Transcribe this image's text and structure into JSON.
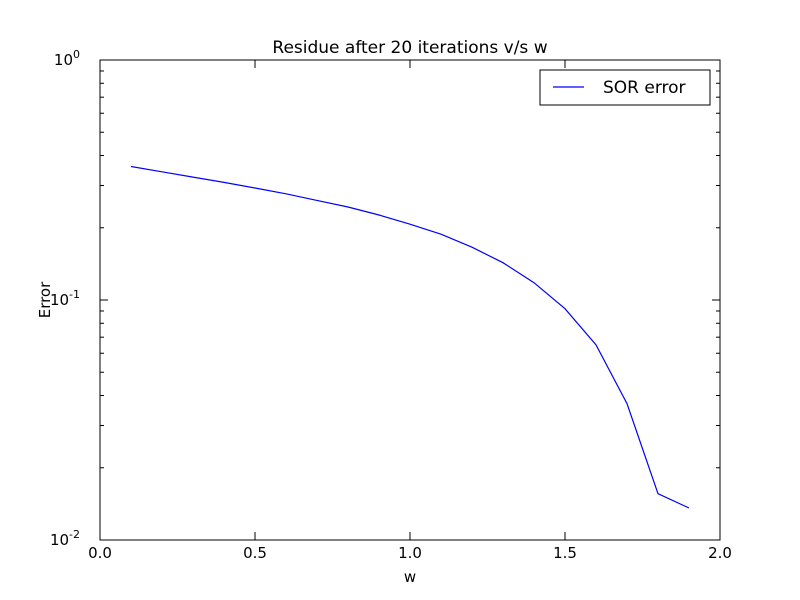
{
  "chart_data": {
    "type": "line",
    "title": "Residue after 20 iterations v/s w",
    "xlabel": "w",
    "ylabel": "Error",
    "xlim": [
      0.0,
      2.0
    ],
    "ylim": [
      0.01,
      1.0
    ],
    "yscale": "log",
    "grid": false,
    "legend_position": "top-right",
    "x_ticks": [
      "0.0",
      "0.5",
      "1.0",
      "1.5",
      "2.0"
    ],
    "y_ticks": [
      {
        "base": "10",
        "exp": "-2"
      },
      {
        "base": "10",
        "exp": "-1"
      },
      {
        "base": "10",
        "exp": "0"
      }
    ],
    "series": [
      {
        "name": "SOR error",
        "color": "#0000ff",
        "x": [
          0.1,
          0.2,
          0.3,
          0.4,
          0.5,
          0.6,
          0.7,
          0.8,
          0.9,
          1.0,
          1.1,
          1.2,
          1.3,
          1.4,
          1.5,
          1.6,
          1.7,
          1.8,
          1.9
        ],
        "values": [
          0.36,
          0.342,
          0.325,
          0.309,
          0.293,
          0.277,
          0.26,
          0.244,
          0.226,
          0.207,
          0.188,
          0.166,
          0.143,
          0.118,
          0.092,
          0.065,
          0.037,
          0.0156,
          0.0136
        ]
      }
    ]
  }
}
